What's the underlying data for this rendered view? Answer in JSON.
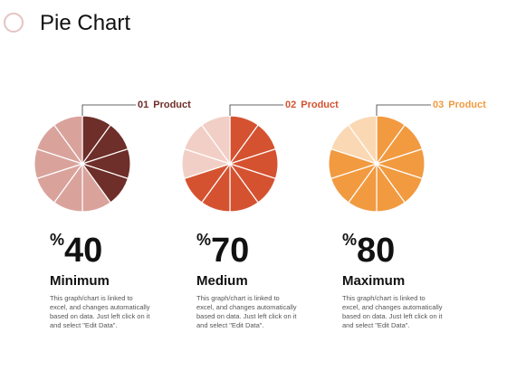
{
  "title": "Pie Chart",
  "chart_data": [
    {
      "type": "pie",
      "label_number": "01",
      "label": "Product",
      "value": 40,
      "percent_symbol": "%",
      "caption": "Minimum",
      "description": "This graph/chart is linked to excel, and changes automatically based on data. Just left click on it and select \"Edit Data\".",
      "slices": [
        {
          "value": 40,
          "color": "#6e2e29"
        },
        {
          "value": 60,
          "color": "#d9a39c"
        }
      ],
      "accent_color": "#6e2e29"
    },
    {
      "type": "pie",
      "label_number": "02",
      "label": "Product",
      "value": 70,
      "percent_symbol": "%",
      "caption": "Medium",
      "description": "This graph/chart is linked to excel, and changes automatically based on data. Just left click on it and select \"Edit Data\".",
      "slices": [
        {
          "value": 70,
          "color": "#d55230"
        },
        {
          "value": 30,
          "color": "#f2cfc6"
        }
      ],
      "accent_color": "#d55230"
    },
    {
      "type": "pie",
      "label_number": "03",
      "label": "Product",
      "value": 80,
      "percent_symbol": "%",
      "caption": "Maximum",
      "description": "This graph/chart is linked to excel, and changes automatically based on data. Just left click on it and select \"Edit Data\".",
      "slices": [
        {
          "value": 80,
          "color": "#f29a40"
        },
        {
          "value": 20,
          "color": "#fad8b4"
        }
      ],
      "accent_color": "#f29a40"
    }
  ]
}
